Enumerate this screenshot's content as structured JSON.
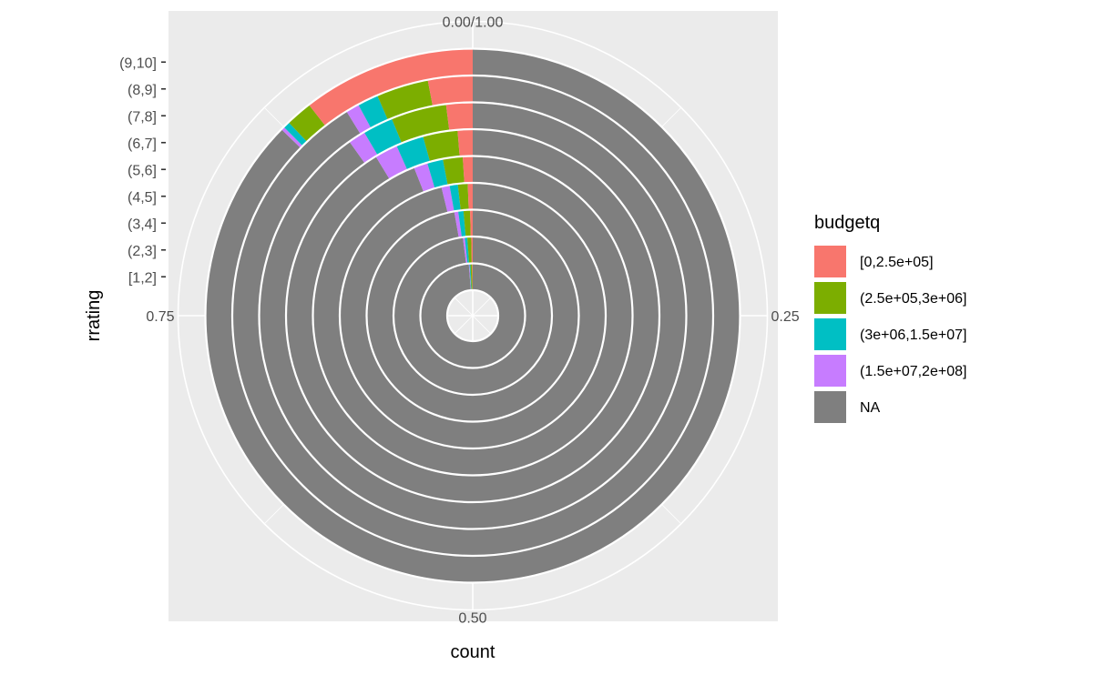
{
  "chart_data": {
    "type": "bar",
    "coord": "polar",
    "xlabel": "count",
    "ylabel": "rrating",
    "angle_ticks": [
      "0.00/1.00",
      "0.25",
      "0.50",
      "0.75"
    ],
    "categories": [
      "[1,2]",
      "(2,3]",
      "(3,4]",
      "(4,5]",
      "(5,6]",
      "(6,7]",
      "(7,8]",
      "(8,9]",
      "(9,10]"
    ],
    "legend_title": "budgetq",
    "legend_position": "right",
    "panel_background": "#ebebeb",
    "grid": true,
    "series": [
      {
        "name": "[0,2.5e+05]",
        "color": "#F8766D",
        "values": [
          0.002,
          0.003,
          0.004,
          0.006,
          0.01,
          0.013,
          0.02,
          0.03,
          0.105
        ]
      },
      {
        "name": "(2.5e+05,3e+06]",
        "color": "#7CAE00",
        "values": [
          0.005,
          0.008,
          0.01,
          0.012,
          0.02,
          0.03,
          0.042,
          0.035,
          0.016
        ]
      },
      {
        "name": "(3e+06,1.5e+07]",
        "color": "#00BFC4",
        "values": [
          0.003,
          0.005,
          0.008,
          0.01,
          0.016,
          0.024,
          0.023,
          0.014,
          0.004
        ]
      },
      {
        "name": "(1.5e+07,2e+08]",
        "color": "#C77CFF",
        "values": [
          0.002,
          0.004,
          0.006,
          0.01,
          0.014,
          0.02,
          0.013,
          0.009,
          0.002
        ]
      },
      {
        "name": "NA",
        "color": "#7F7F7F",
        "values": [
          0.988,
          0.98,
          0.972,
          0.962,
          0.94,
          0.913,
          0.902,
          0.912,
          0.873
        ]
      }
    ]
  }
}
